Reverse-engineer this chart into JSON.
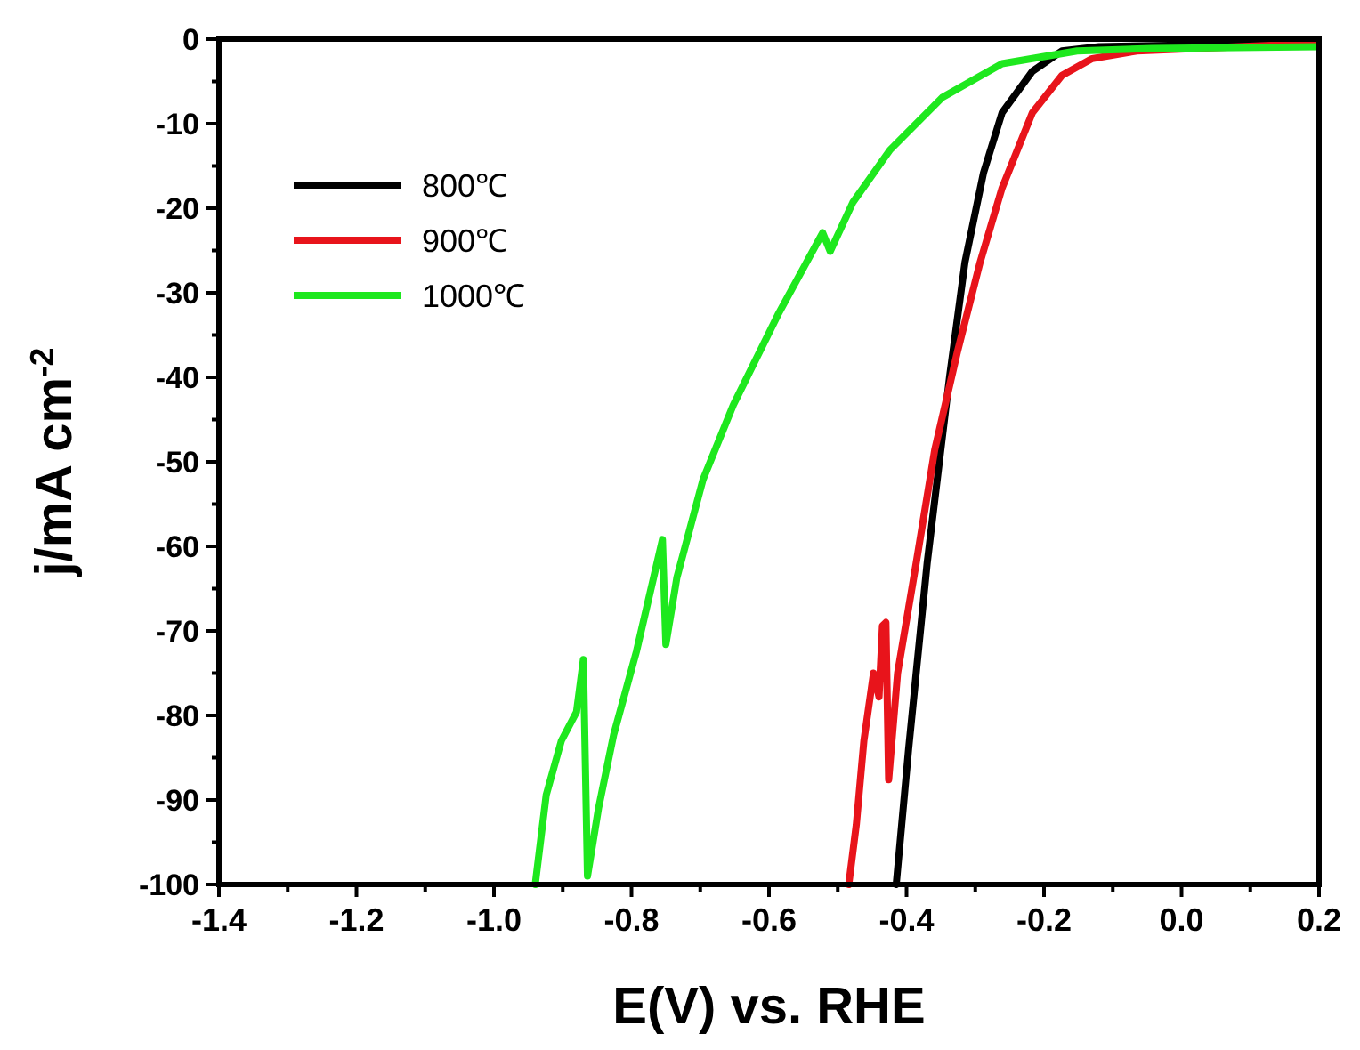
{
  "chart_data": {
    "type": "line",
    "xlabel": "E(V) vs. RHE",
    "ylabel": "j/mA cm$^{-2}$",
    "xlim": [
      -1.4,
      0.2
    ],
    "xticks": [
      -1.4,
      {
        "value": -1.3,
        "label": null
      },
      -1.2,
      {
        "value": -1.1,
        "label": null
      },
      {
        "value": -1,
        "label": "-1.0"
      },
      {
        "value": -0.9,
        "label": null
      },
      -0.8,
      {
        "value": -0.7,
        "label": null
      },
      -0.6,
      {
        "value": -0.5,
        "label": null
      },
      -0.4,
      {
        "value": -0.3,
        "label": null
      },
      -0.2,
      {
        "value": -0.1,
        "label": null
      },
      {
        "value": 0,
        "label": "0.0"
      },
      {
        "value": 0.1,
        "label": null
      },
      0.2
    ],
    "ylim": [
      -100,
      0
    ],
    "yticks": [
      -100,
      {
        "value": -95,
        "label": null
      },
      -90,
      {
        "value": -85,
        "label": null
      },
      -80,
      {
        "value": -75,
        "label": null
      },
      -70,
      {
        "value": -65,
        "label": null
      },
      -60,
      {
        "value": -55,
        "label": null
      },
      -50,
      {
        "value": -45,
        "label": null
      },
      -40,
      {
        "value": -35,
        "label": null
      },
      -30,
      {
        "value": -25,
        "label": null
      },
      -20,
      {
        "value": -15,
        "label": null
      },
      -10,
      {
        "value": -5,
        "label": null
      },
      0
    ],
    "grid": false,
    "legend": "top left",
    "marker": "none",
    "line_style": "solid",
    "series": [
      {
        "name": "800℃",
        "color": "#000000",
        "x": [
          -0.415,
          -0.397,
          -0.37,
          -0.337,
          -0.315,
          -0.288,
          -0.261,
          -0.217,
          -0.174,
          -0.12,
          0.0,
          0.2
        ],
        "values": [
          -100,
          -84,
          -62,
          -39.7,
          -26.4,
          -15.8,
          -8.7,
          -3.8,
          -1.4,
          -0.9,
          -0.7,
          -0.6
        ]
      },
      {
        "name": "900℃",
        "color": "#e8141b",
        "x": [
          -0.484,
          -0.473,
          -0.462,
          -0.448,
          -0.44,
          -0.435,
          -0.43,
          -0.426,
          -0.413,
          -0.386,
          -0.359,
          -0.326,
          -0.293,
          -0.261,
          -0.217,
          -0.174,
          -0.13,
          -0.065,
          0.2
        ],
        "values": [
          -100,
          -92.9,
          -83,
          -75,
          -77.8,
          -69.4,
          -69,
          -87.6,
          -75,
          -62,
          -48.6,
          -37,
          -26.4,
          -17.6,
          -8.7,
          -4.3,
          -2.3,
          -1.4,
          -0.5
        ]
      },
      {
        "name": "1000℃",
        "color": "#1ee81e",
        "x": [
          -0.94,
          -0.924,
          -0.902,
          -0.88,
          -0.87,
          -0.864,
          -0.848,
          -0.826,
          -0.793,
          -0.755,
          -0.75,
          -0.734,
          -0.696,
          -0.652,
          -0.587,
          -0.522,
          -0.511,
          -0.478,
          -0.424,
          -0.348,
          -0.261,
          -0.152,
          -0.043,
          0.2
        ],
        "values": [
          -100,
          -89.4,
          -83,
          -79.6,
          -73.4,
          -99,
          -91,
          -82.3,
          -72.5,
          -59.2,
          -71.6,
          -63.7,
          -52.1,
          -43.3,
          -32.6,
          -22.9,
          -25.1,
          -19.3,
          -13.1,
          -6.9,
          -2.9,
          -1.4,
          -1.1,
          -0.9
        ]
      }
    ]
  }
}
